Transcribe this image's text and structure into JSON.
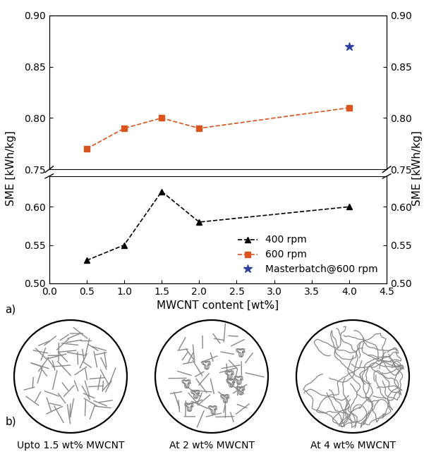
{
  "chart_data": [
    {
      "type": "line",
      "tick_labels": "y",
      "xlim": [
        0.0,
        4.5
      ],
      "ylim": [
        0.75,
        0.9
      ],
      "yticks": [
        {
          "value": 0.75,
          "label": "0.75"
        },
        {
          "value": 0.8,
          "label": "0.80"
        },
        {
          "value": 0.85,
          "label": "0.85"
        },
        {
          "value": 0.9,
          "label": "0.90"
        }
      ],
      "series": [
        {
          "name": "600 rpm",
          "color": "#d9541e",
          "marker": "square",
          "line_style": "dashed",
          "x": [
            0.5,
            1.0,
            1.5,
            2.0,
            4.0
          ],
          "values": [
            0.77,
            0.79,
            0.8,
            0.79,
            0.81
          ]
        },
        {
          "name": "Masterbatch@600 rpm",
          "color": "#2e3d9e",
          "marker": "star",
          "line_style": "none",
          "x": [
            4.0
          ],
          "values": [
            0.87
          ]
        }
      ]
    },
    {
      "type": "line",
      "panel_label": "a)",
      "x_label": "MWCNT content [wt%]",
      "y_label": "SME [kWh/kg]",
      "legend": "lower right",
      "xlim": [
        0.0,
        4.5
      ],
      "xticks": [
        0.0,
        0.5,
        1.0,
        1.5,
        2.0,
        2.5,
        3.0,
        3.5,
        4.0,
        4.5
      ],
      "ylim": [
        0.5,
        0.64
      ],
      "yticks": [
        {
          "value": 0.5,
          "label": "0.50"
        },
        {
          "value": 0.55,
          "label": "0.55"
        },
        {
          "value": 0.6,
          "label": "0.60"
        }
      ],
      "series": [
        {
          "name": "400 rpm",
          "color": "#000000",
          "marker": "triangle",
          "line_style": "dashed",
          "x": [
            0.5,
            1.0,
            1.5,
            2.0,
            4.0
          ],
          "values": [
            0.53,
            0.55,
            0.62,
            0.58,
            0.6
          ]
        }
      ]
    }
  ],
  "diagram": {
    "label": "b)",
    "panels": [
      {
        "caption": "Upto 1.5 wt% MWCNT"
      },
      {
        "caption": "At 2 wt% MWCNT"
      },
      {
        "caption": "At 4 wt% MWCNT"
      }
    ]
  }
}
